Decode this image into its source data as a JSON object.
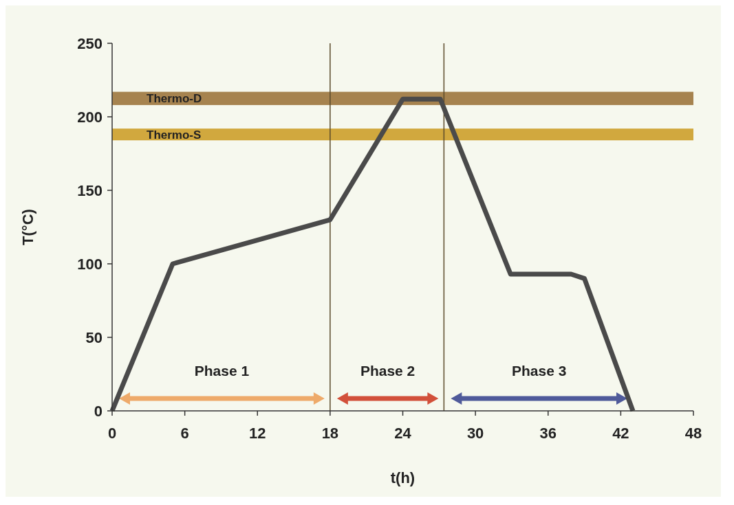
{
  "chart_data": {
    "type": "line",
    "xlabel": "t(h)",
    "ylabel": "T(°C)",
    "x": [
      0,
      5,
      18,
      24,
      27.1,
      32.9,
      37.9,
      39,
      43
    ],
    "series": [
      {
        "color": "#4a4a4a",
        "values": [
          0,
          100,
          130,
          212,
          212,
          93,
          93,
          90,
          0
        ]
      }
    ],
    "xlim": [
      0,
      48
    ],
    "xticks": [
      0,
      6,
      12,
      18,
      24,
      30,
      36,
      42,
      48
    ],
    "ylim": [
      0,
      250
    ],
    "yticks": [
      0,
      50,
      100,
      150,
      200,
      250
    ],
    "marker": "none",
    "line_style": "solid",
    "grid": false,
    "ref_lines": [
      {
        "axis": "x",
        "value": 18,
        "color": "#5a4a2a"
      },
      {
        "axis": "x",
        "value": 27.4,
        "color": "#5a4a2a"
      }
    ],
    "bands": [
      {
        "axis": "y",
        "from": 208,
        "to": 217,
        "label": "Thermo-D",
        "color": "#a6834f"
      },
      {
        "axis": "y",
        "from": 184,
        "to": 192,
        "label": "Thermo-S",
        "color": "#d1a83e"
      }
    ],
    "annotations": [
      "Phase 1",
      "Phase 2",
      "Phase 3"
    ]
  }
}
